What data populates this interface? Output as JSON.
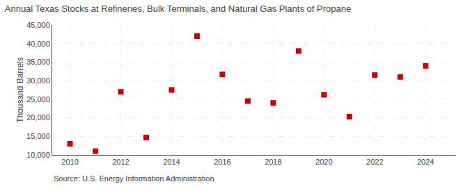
{
  "chart_data": {
    "type": "scatter",
    "title": "Annual Texas Stocks at Refineries, Bulk Terminals, and Natural Gas Plants of Propane",
    "ylabel": "Thousand Barrels",
    "annotations": [
      "Source: U.S. Energy Information Administration"
    ],
    "x": [
      2010,
      2011,
      2012,
      2013,
      2014,
      2015,
      2016,
      2017,
      2018,
      2019,
      2020,
      2021,
      2022,
      2023,
      2024
    ],
    "values": [
      13000,
      11000,
      27000,
      14700,
      27500,
      42000,
      31700,
      24500,
      24000,
      38000,
      26200,
      20300,
      31500,
      31000,
      34000
    ],
    "color": "#cc0000",
    "marker": "square",
    "xlim": [
      2009.3,
      2025.2
    ],
    "xticks": [
      2010,
      2012,
      2014,
      2016,
      2018,
      2020,
      2022,
      2024
    ],
    "ylim": [
      10000,
      45000
    ],
    "yticks": [
      {
        "value": 10000,
        "label": "10,000"
      },
      {
        "value": 15000,
        "label": "15,000"
      },
      {
        "value": 20000,
        "label": "20,000"
      },
      {
        "value": 25000,
        "label": "25,000"
      },
      {
        "value": 30000,
        "label": "30,000"
      },
      {
        "value": 35000,
        "label": "35,000"
      },
      {
        "value": 40000,
        "label": "40,000"
      },
      {
        "value": 45000,
        "label": "45,000"
      }
    ],
    "grid": true
  }
}
